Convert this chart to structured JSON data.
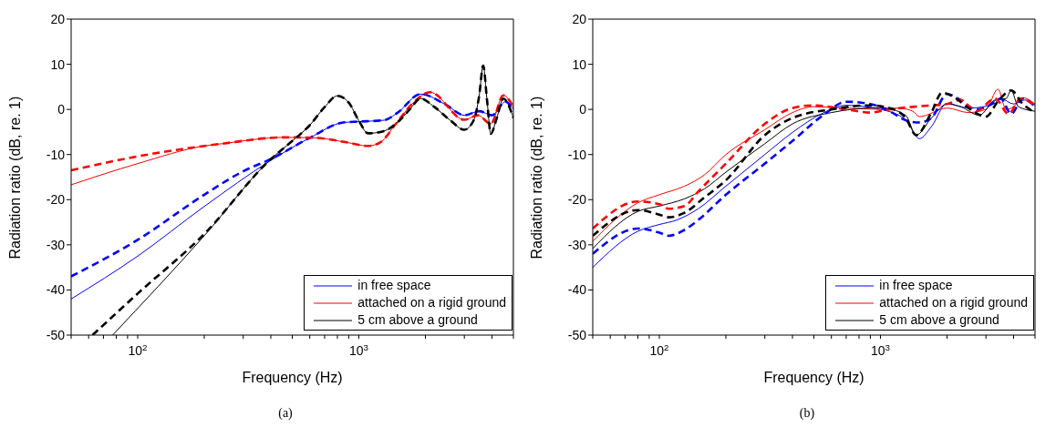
{
  "chart_data": [
    {
      "type": "line",
      "xlabel": "Frequency (Hz)",
      "ylabel": "Radiation ratio (dB, re. 1)",
      "annotations": [
        "(a)"
      ],
      "legend": "bottom right",
      "log": "x",
      "xlim": [
        50,
        5000
      ],
      "ylim": [
        -50,
        20
      ],
      "yticks": [
        -50,
        -40,
        -30,
        -20,
        -10,
        0,
        10,
        20
      ],
      "xticks": [
        {
          "value": 50,
          "label": null
        },
        {
          "value": 60,
          "label": null
        },
        {
          "value": 70,
          "label": null
        },
        {
          "value": 80,
          "label": null
        },
        {
          "value": 90,
          "label": null
        },
        {
          "value": 100,
          "label": "10$^{2}$"
        },
        {
          "value": 200,
          "label": null
        },
        {
          "value": 300,
          "label": null
        },
        {
          "value": 400,
          "label": null
        },
        {
          "value": 500,
          "label": null
        },
        {
          "value": 600,
          "label": null
        },
        {
          "value": 700,
          "label": null
        },
        {
          "value": 800,
          "label": null
        },
        {
          "value": 900,
          "label": null
        },
        {
          "value": 1000,
          "label": "10$^{3}$"
        },
        {
          "value": 2000,
          "label": null
        },
        {
          "value": 3000,
          "label": null
        },
        {
          "value": 4000,
          "label": null
        },
        {
          "value": 5000,
          "label": null
        }
      ],
      "series": [
        {
          "name": "in free space",
          "color": "#0000ff",
          "line_style": "solid",
          "x": [
            50,
            100,
            200,
            400,
            600,
            850,
            1000,
            1300,
            1500,
            1900,
            2500,
            3000,
            3500,
            4000,
            4600,
            5000
          ],
          "values": [
            -42,
            -32.5,
            -21.5,
            -11.3,
            -6.3,
            -2.9,
            -2.7,
            -2.4,
            -0.7,
            3.4,
            0.9,
            -1.3,
            -0.4,
            -1.3,
            1.7,
            0
          ]
        },
        {
          "name": "attached on a rigid ground",
          "color": "#ff0000",
          "line_style": "solid",
          "x": [
            50,
            100,
            200,
            240,
            460,
            635,
            880,
            1100,
            1250,
            1470,
            1740,
            2100,
            3000,
            3450,
            3950,
            4500,
            5000
          ],
          "values": [
            -16.7,
            -12,
            -8.1,
            -7.6,
            -6.2,
            -6.3,
            -7.3,
            -8.1,
            -7.3,
            -3.2,
            1.2,
            3.8,
            -2.3,
            -1.3,
            -3.2,
            3.1,
            0.6
          ]
        },
        {
          "name": "5 cm above a ground",
          "color": "#000000",
          "line_style": "solid",
          "x": [
            77,
            200,
            400,
            500,
            600,
            700,
            800,
            900,
            1000,
            1100,
            1300,
            1500,
            1700,
            1900,
            2200,
            2600,
            3000,
            3300,
            3500,
            3650,
            3800,
            3950,
            4200,
            4500,
            5000
          ],
          "values": [
            -50,
            -28,
            -11,
            -7,
            -3.5,
            0.5,
            3,
            1.5,
            -2.5,
            -5.3,
            -4.8,
            -2.8,
            0,
            2.4,
            0.5,
            -2.5,
            -4.5,
            -2.5,
            3,
            9.7,
            2,
            -5.4,
            -2,
            2.4,
            -1.9
          ]
        },
        {
          "color": "#0000ff",
          "line_style": "dashed",
          "x": [
            50,
            100,
            200,
            300,
            400,
            600,
            850,
            1000,
            1300,
            1500,
            1900,
            2500,
            3000,
            3500,
            4000,
            4600,
            5000
          ],
          "values": [
            -37,
            -28.9,
            -18.9,
            -13.7,
            -11,
            -6.3,
            -2.9,
            -2.7,
            -2.4,
            -0.7,
            3.4,
            0.9,
            -1.3,
            -0.4,
            -1.3,
            1.7,
            0
          ]
        },
        {
          "color": "#ff0000",
          "line_style": "dashed",
          "x": [
            50,
            100,
            240,
            460,
            635,
            880,
            1100,
            1250,
            1470,
            1740,
            2100,
            3000,
            3450,
            3950,
            4500,
            5000
          ],
          "values": [
            -13.5,
            -10.4,
            -7.6,
            -6.2,
            -6.3,
            -7.3,
            -8.1,
            -7.3,
            -3.2,
            1.2,
            3.8,
            -2.3,
            -1.3,
            -3.2,
            3.1,
            0.6
          ]
        },
        {
          "color": "#000000",
          "line_style": "dashed",
          "x": [
            62.5,
            100,
            200,
            400,
            500,
            600,
            700,
            800,
            900,
            1000,
            1100,
            1300,
            1500,
            1700,
            1900,
            2200,
            2600,
            3000,
            3300,
            3500,
            3650,
            3800,
            3950,
            4200,
            4500,
            5000
          ],
          "values": [
            -50,
            -40.8,
            -27.6,
            -11,
            -7,
            -3.5,
            0.5,
            3,
            1.5,
            -2.5,
            -5.3,
            -4.8,
            -2.8,
            0,
            2.4,
            0.5,
            -2.5,
            -4.5,
            -2.5,
            3,
            9.7,
            2,
            -5.4,
            -2,
            2.4,
            -1.9
          ]
        }
      ]
    },
    {
      "type": "line",
      "xlabel": "Frequency (Hz)",
      "ylabel": "Radiation ratio (dB, re. 1)",
      "annotations": [
        "(b)"
      ],
      "legend": "bottom right",
      "log": "x",
      "xlim": [
        50,
        5000
      ],
      "ylim": [
        -50,
        20
      ],
      "yticks": [
        -50,
        -40,
        -30,
        -20,
        -10,
        0,
        10,
        20
      ],
      "xticks": [
        {
          "value": 50,
          "label": null
        },
        {
          "value": 60,
          "label": null
        },
        {
          "value": 70,
          "label": null
        },
        {
          "value": 80,
          "label": null
        },
        {
          "value": 90,
          "label": null
        },
        {
          "value": 100,
          "label": "10$^{2}$"
        },
        {
          "value": 200,
          "label": null
        },
        {
          "value": 300,
          "label": null
        },
        {
          "value": 400,
          "label": null
        },
        {
          "value": 500,
          "label": null
        },
        {
          "value": 600,
          "label": null
        },
        {
          "value": 700,
          "label": null
        },
        {
          "value": 800,
          "label": null
        },
        {
          "value": 900,
          "label": null
        },
        {
          "value": 1000,
          "label": "10$^{3}$"
        },
        {
          "value": 2000,
          "label": null
        },
        {
          "value": 3000,
          "label": null
        },
        {
          "value": 4000,
          "label": null
        },
        {
          "value": 5000,
          "label": null
        }
      ],
      "series": [
        {
          "name": "in free space",
          "color": "#0000ff",
          "line_style": "solid",
          "x": [
            50,
            80,
            100,
            120,
            150,
            200,
            300,
            400,
            550,
            700,
            1000,
            1300,
            1500,
            1700,
            2000,
            2500,
            3000,
            3500,
            4000,
            4500,
            5000
          ],
          "values": [
            -35,
            -27,
            -25.5,
            -24.5,
            -22,
            -17,
            -10,
            -5.1,
            -0.8,
            0.9,
            0,
            -2.3,
            -6.5,
            -3.8,
            1.3,
            0.3,
            0.7,
            2.4,
            1.2,
            2.1,
            0.9
          ]
        },
        {
          "name": "attached on a rigid ground",
          "color": "#ff0000",
          "line_style": "solid",
          "x": [
            50,
            80,
            100,
            130,
            160,
            200,
            300,
            400,
            500,
            700,
            1000,
            1200,
            1400,
            1500,
            2000,
            2500,
            3000,
            3400,
            3700,
            4000,
            4400,
            5000
          ],
          "values": [
            -29.2,
            -20.7,
            -18.9,
            -17,
            -14.5,
            -10,
            -4.5,
            -0.7,
            0.6,
            0.3,
            0,
            0.3,
            -0.4,
            -1.6,
            0.3,
            -0.7,
            0,
            4.5,
            0,
            0.6,
            2.6,
            1.2
          ]
        },
        {
          "name": "5 cm above a ground",
          "color": "#000000",
          "line_style": "solid",
          "x": [
            50,
            80,
            100,
            130,
            160,
            200,
            300,
            400,
            600,
            1000,
            1300,
            1450,
            1700,
            2000,
            2300,
            2800,
            3300,
            3700,
            3900,
            4200,
            5000
          ],
          "values": [
            -30.8,
            -22.6,
            -21.4,
            -19.8,
            -17.6,
            -13.9,
            -7.6,
            -3.2,
            -0.7,
            0.4,
            -1.3,
            -5.7,
            -1.9,
            1.2,
            0.6,
            -1.3,
            2.1,
            2.4,
            4.2,
            0.6,
            -0.4
          ]
        },
        {
          "color": "#0000ff",
          "line_style": "dashed",
          "x": [
            50,
            80,
            100,
            110,
            130,
            150,
            200,
            300,
            400,
            550,
            700,
            900,
            1100,
            1300,
            1500,
            1700,
            2000,
            2300,
            2700,
            3200,
            3500,
            3900,
            4400,
            5000
          ],
          "values": [
            -32,
            -26.4,
            -27.3,
            -28,
            -26.7,
            -24.5,
            -18.9,
            -12,
            -7,
            -1.3,
            1.7,
            1.2,
            -0.4,
            -2.4,
            -2.9,
            -1.9,
            3.4,
            2.1,
            0,
            1.2,
            2.4,
            -1,
            2.4,
            0.6
          ]
        },
        {
          "color": "#ff0000",
          "line_style": "dashed",
          "x": [
            50,
            80,
            100,
            110,
            130,
            150,
            200,
            300,
            400,
            500,
            700,
            900,
            1100,
            1500,
            2000,
            2300,
            2700,
            3300,
            3800,
            4300,
            5000
          ],
          "values": [
            -26.4,
            -20.4,
            -21,
            -22,
            -21.4,
            -18.2,
            -12,
            -3.2,
            0.3,
            0.9,
            0,
            -0.7,
            0,
            0.7,
            1.2,
            2.1,
            -0.4,
            2.4,
            -1,
            2.4,
            0.9
          ]
        },
        {
          "color": "#000000",
          "line_style": "dashed",
          "x": [
            50,
            80,
            100,
            110,
            130,
            160,
            200,
            300,
            400,
            600,
            900,
            1100,
            1300,
            1450,
            1700,
            1900,
            2200,
            2500,
            3000,
            3400,
            3900,
            4400,
            5000
          ],
          "values": [
            -28,
            -22.3,
            -23.3,
            -23.9,
            -22.9,
            -19.5,
            -15.7,
            -5.7,
            -1.9,
            0,
            0.9,
            0.3,
            -1.9,
            -5.7,
            -0.7,
            3.7,
            2.4,
            0.3,
            -1.6,
            1.8,
            4.2,
            1.2,
            -0.7
          ]
        }
      ]
    }
  ]
}
